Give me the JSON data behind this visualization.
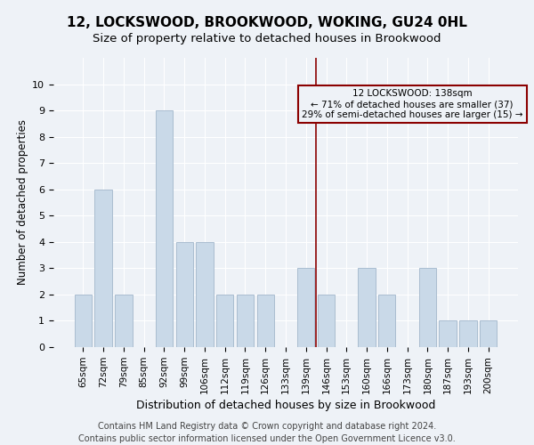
{
  "title": "12, LOCKSWOOD, BROOKWOOD, WOKING, GU24 0HL",
  "subtitle": "Size of property relative to detached houses in Brookwood",
  "xlabel": "Distribution of detached houses by size in Brookwood",
  "ylabel": "Number of detached properties",
  "footer_line1": "Contains HM Land Registry data © Crown copyright and database right 2024.",
  "footer_line2": "Contains public sector information licensed under the Open Government Licence v3.0.",
  "categories": [
    "65sqm",
    "72sqm",
    "79sqm",
    "85sqm",
    "92sqm",
    "99sqm",
    "106sqm",
    "112sqm",
    "119sqm",
    "126sqm",
    "133sqm",
    "139sqm",
    "146sqm",
    "153sqm",
    "160sqm",
    "166sqm",
    "173sqm",
    "180sqm",
    "187sqm",
    "193sqm",
    "200sqm"
  ],
  "values": [
    2,
    6,
    2,
    0,
    9,
    4,
    4,
    2,
    2,
    2,
    0,
    3,
    2,
    0,
    3,
    2,
    0,
    3,
    1,
    1,
    1
  ],
  "bar_color": "#c9d9e8",
  "bar_edgecolor": "#aabdd0",
  "vline_color": "#8b0000",
  "vline_x": 11.5,
  "annotation_line1": "12 LOCKSWOOD: 138sqm",
  "annotation_line2": "← 71% of detached houses are smaller (37)",
  "annotation_line3": "29% of semi-detached houses are larger (15) →",
  "annotation_box_color": "#8b0000",
  "ylim": [
    0,
    11
  ],
  "yticks": [
    0,
    1,
    2,
    3,
    4,
    5,
    6,
    7,
    8,
    9,
    10
  ],
  "background_color": "#eef2f7",
  "grid_color": "#ffffff",
  "title_fontsize": 11,
  "subtitle_fontsize": 9.5,
  "axis_label_fontsize": 8.5,
  "tick_fontsize": 7.5,
  "footer_fontsize": 7
}
